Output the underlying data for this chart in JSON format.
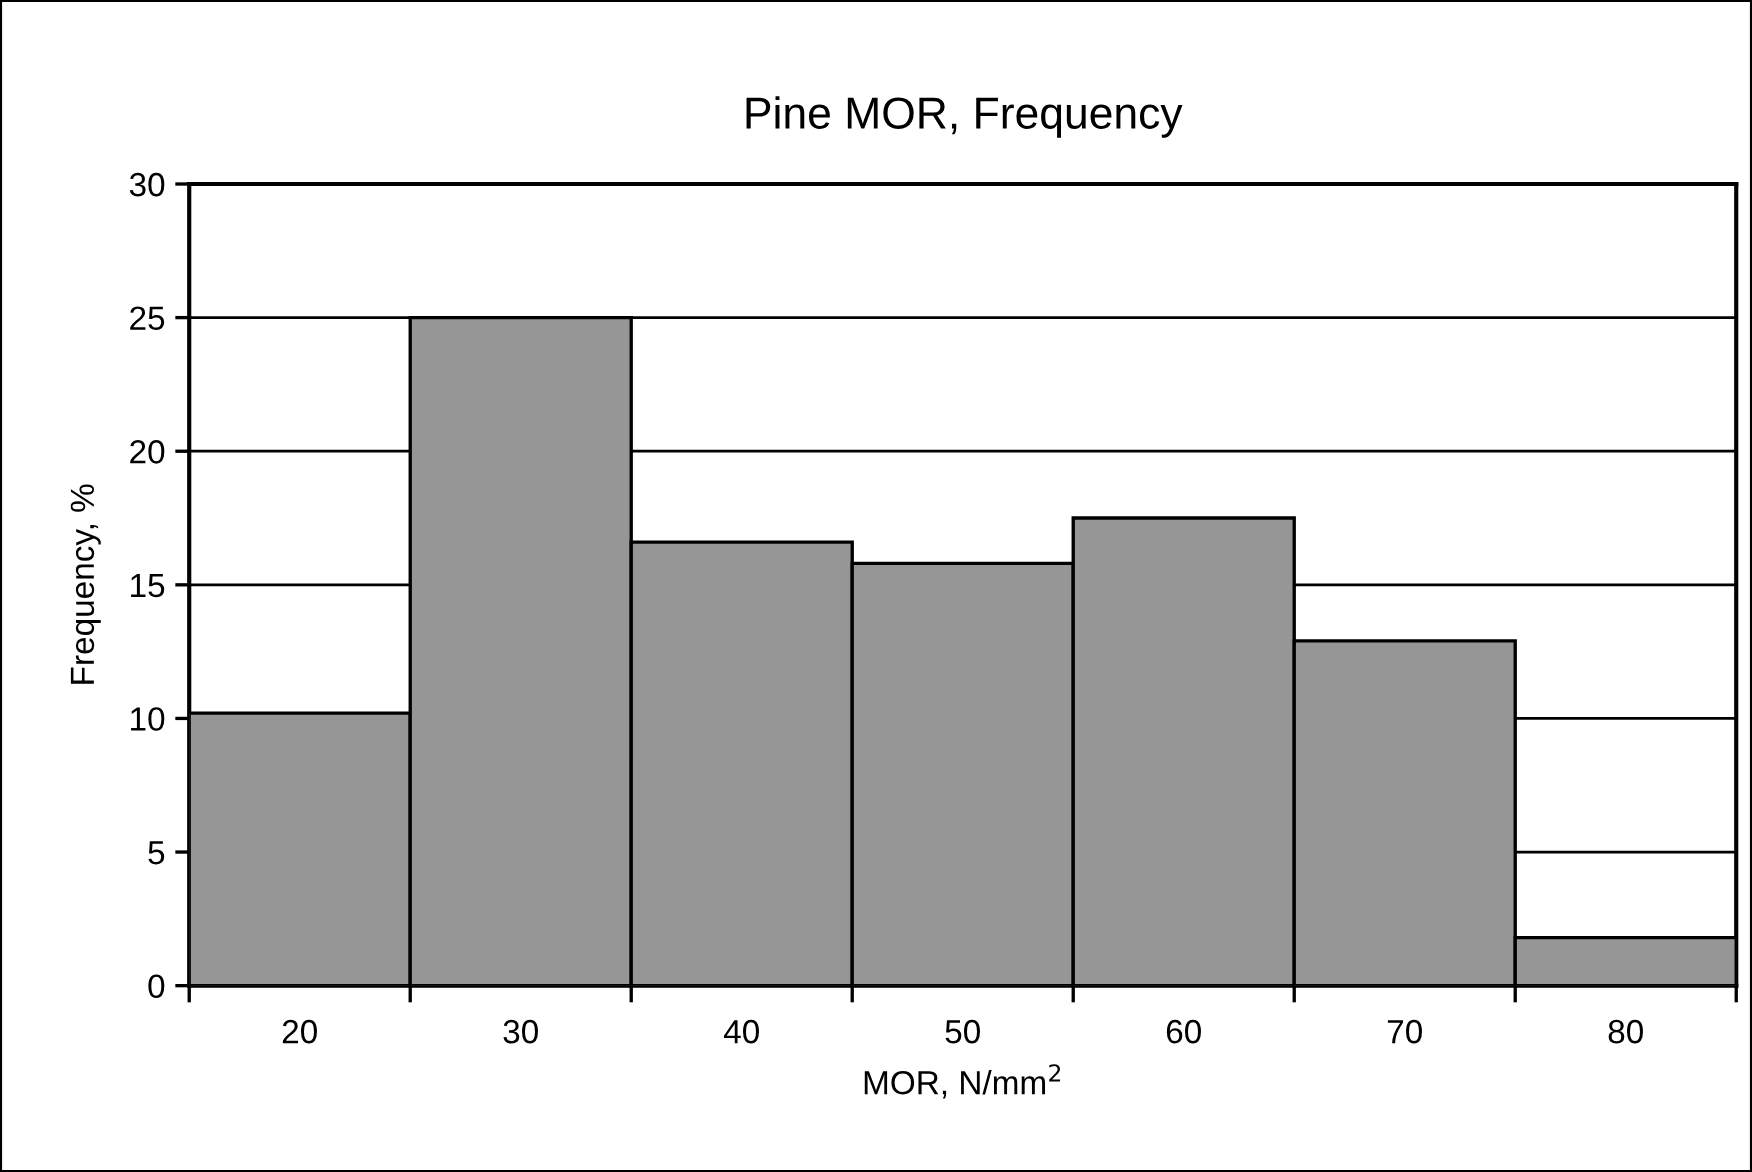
{
  "chart_data": {
    "type": "bar",
    "title": "Pine MOR, Frequency",
    "xlabel": "MOR, N/mm$^{2}$",
    "ylabel": "Frequency, %",
    "categories": [
      "20",
      "30",
      "40",
      "50",
      "60",
      "70",
      "80"
    ],
    "values": [
      10.2,
      25,
      16.6,
      15.8,
      17.5,
      12.9,
      1.8
    ],
    "color": "#969696",
    "ylim": [
      0,
      30
    ],
    "yticks": [
      0,
      5,
      10,
      15,
      20,
      25,
      30
    ],
    "grid": "y",
    "legend": false
  }
}
